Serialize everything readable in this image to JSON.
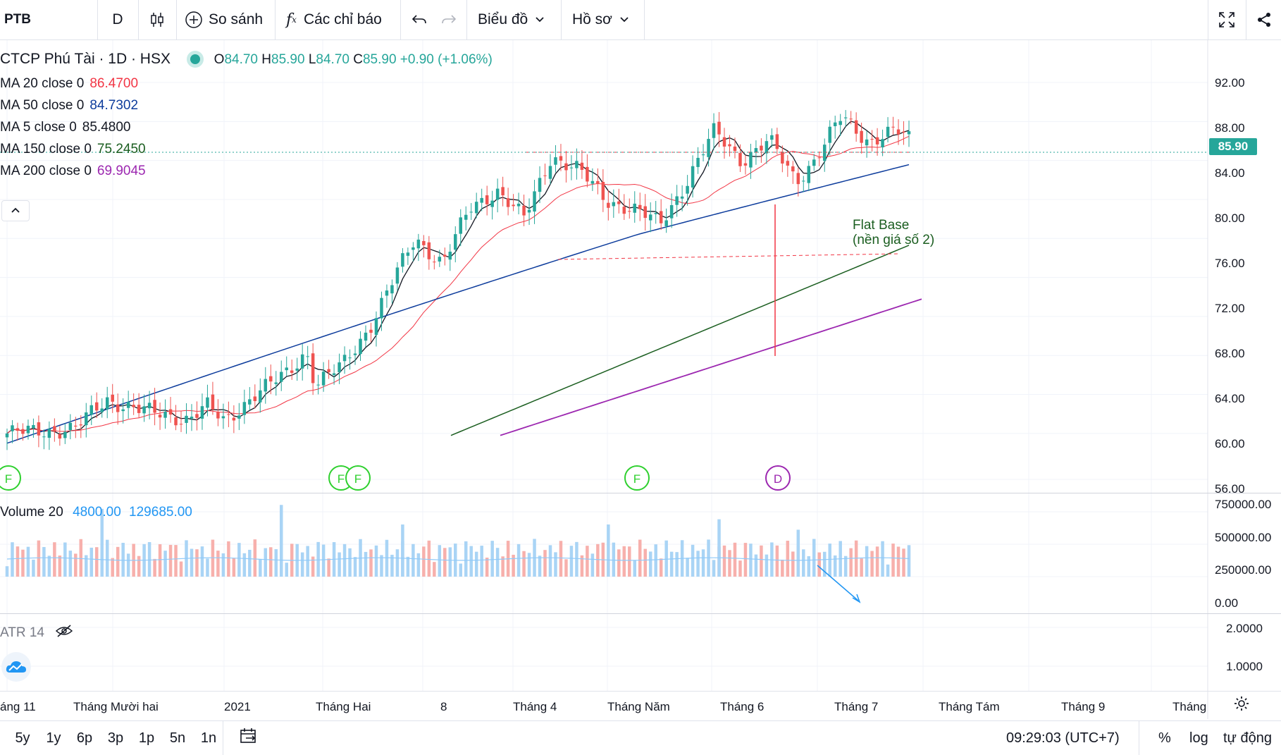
{
  "toolbar": {
    "symbol": "PTB",
    "interval": "D",
    "compare_label": "So sánh",
    "indicators_label": "Các chỉ báo",
    "chart_type_label": "Biểu đồ",
    "profile_label": "Hồ sơ"
  },
  "legend": {
    "title": "CTCP Phú Tài · 1D · HSX",
    "open_label": "O",
    "open": "84.70",
    "high_label": "H",
    "high": "85.90",
    "low_label": "L",
    "low": "84.70",
    "close_label": "C",
    "close": "85.90",
    "change": "+0.90 (+1.06%)",
    "ma": [
      {
        "label": "MA 20 close 0",
        "value": "86.4700",
        "color": "#f23645"
      },
      {
        "label": "MA 50 close 0",
        "value": "84.7302",
        "color": "#0d3c9c"
      },
      {
        "label": "MA 5 close 0",
        "value": "85.4800",
        "color": "#131722"
      },
      {
        "label": "MA 150 close 0",
        "value": "75.2450",
        "color": "#1b5e20"
      },
      {
        "label": "MA 200 close 0",
        "value": "69.9045",
        "color": "#9c27b0"
      }
    ]
  },
  "price_axis": [
    "92.00",
    "88.00",
    "84.00",
    "80.00",
    "76.00",
    "72.00",
    "68.00",
    "64.00",
    "60.00",
    "56.00"
  ],
  "last_price": "85.90",
  "annotation": {
    "line1": "Flat Base",
    "line2": "(nền giá số 2)"
  },
  "event_markers": [
    "F",
    "F",
    "F",
    "F",
    "D"
  ],
  "volume_pane": {
    "label": "Volume 20",
    "value1": "4800.00",
    "value2": "129685.00",
    "axis": [
      "750000.00",
      "500000.00",
      "250000.00",
      "0.00"
    ]
  },
  "atr_pane": {
    "label": "ATR 14",
    "axis": [
      "2.0000",
      "1.0000"
    ]
  },
  "time_axis": [
    "áng 11",
    "Tháng Mười hai",
    "2021",
    "Tháng Hai",
    "8",
    "Tháng 4",
    "Tháng Năm",
    "Tháng 6",
    "Tháng 7",
    "Tháng Tám",
    "Tháng 9",
    "Tháng"
  ],
  "ranges": [
    "5y",
    "1y",
    "6p",
    "3p",
    "1p",
    "5n",
    "1n"
  ],
  "clock": "09:29:03 (UTC+7)",
  "scale_options": [
    "%",
    "log",
    "tự động"
  ],
  "colors": {
    "up": "#26a69a",
    "down": "#ef5350",
    "vol_up": "#a9d4f5",
    "vol_down": "#f7b0ac",
    "ma20": "#f23645",
    "ma50": "#0d3c9c",
    "ma5": "#131722",
    "ma150": "#1b5e20",
    "ma200": "#9c27b0"
  }
}
